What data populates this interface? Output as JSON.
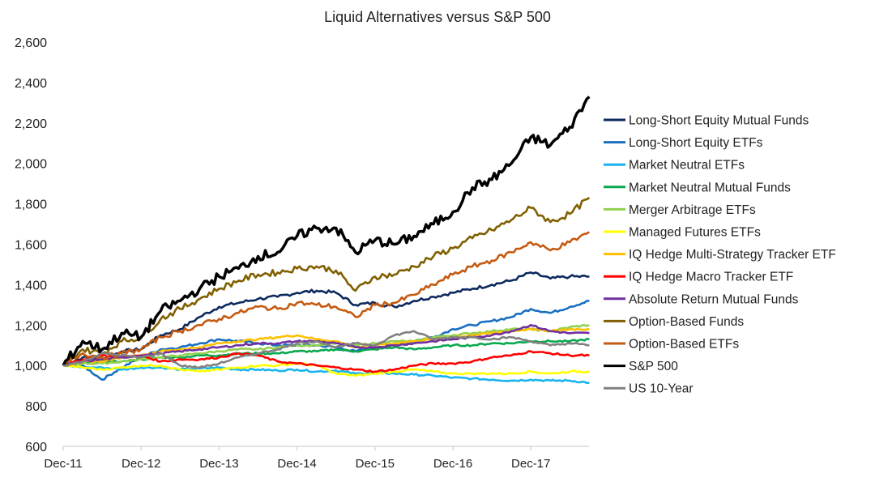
{
  "chart_data": {
    "type": "line",
    "title": "Liquid Alternatives versus S&P 500",
    "xlabel": "",
    "ylabel": "",
    "ylim": [
      600,
      2600
    ],
    "yticks": [
      "600",
      "800",
      "1,000",
      "1,200",
      "1,400",
      "1,600",
      "1,800",
      "2,000",
      "2,200",
      "2,400",
      "2,600"
    ],
    "ytick_values": [
      600,
      800,
      1000,
      1200,
      1400,
      1600,
      1800,
      2000,
      2200,
      2400,
      2600
    ],
    "xticks": [
      "Dec-11",
      "Dec-12",
      "Dec-13",
      "Dec-14",
      "Dec-15",
      "Dec-16",
      "Dec-17"
    ],
    "xtick_dates": [
      "2011-12",
      "2012-12",
      "2013-12",
      "2014-12",
      "2015-12",
      "2016-12",
      "2017-12"
    ],
    "grid": false,
    "legend_position": "right",
    "x": [
      "2011-12",
      "2012-03",
      "2012-06",
      "2012-09",
      "2012-12",
      "2013-03",
      "2013-06",
      "2013-09",
      "2013-12",
      "2014-03",
      "2014-06",
      "2014-09",
      "2014-12",
      "2015-03",
      "2015-06",
      "2015-09",
      "2015-12",
      "2016-03",
      "2016-06",
      "2016-09",
      "2016-12",
      "2017-03",
      "2017-06",
      "2017-09",
      "2017-12",
      "2018-03",
      "2018-06",
      "2018-09"
    ],
    "series": [
      {
        "name": "Long-Short Equity Mutual Funds",
        "color": "#0d2a5e",
        "values": [
          1000,
          1040,
          1030,
          1070,
          1080,
          1150,
          1180,
          1240,
          1290,
          1310,
          1330,
          1340,
          1360,
          1370,
          1360,
          1300,
          1310,
          1290,
          1320,
          1340,
          1360,
          1380,
          1400,
          1420,
          1460,
          1430,
          1440,
          1440
        ]
      },
      {
        "name": "Long-Short Equity ETFs",
        "color": "#1b6fc0",
        "values": [
          1000,
          1000,
          930,
          990,
          1040,
          1080,
          1090,
          1110,
          1130,
          1120,
          1110,
          1100,
          1100,
          1100,
          1090,
          1070,
          1090,
          1100,
          1120,
          1140,
          1180,
          1200,
          1220,
          1240,
          1280,
          1260,
          1290,
          1320
        ]
      },
      {
        "name": "Market Neutral ETFs",
        "color": "#19b4ef",
        "values": [
          1000,
          990,
          990,
          980,
          990,
          990,
          980,
          985,
          990,
          980,
          980,
          975,
          980,
          970,
          975,
          960,
          965,
          960,
          955,
          950,
          940,
          935,
          930,
          925,
          930,
          925,
          925,
          915
        ]
      },
      {
        "name": "Market Neutral Mutual Funds",
        "color": "#0aa84f",
        "values": [
          1000,
          1010,
          1020,
          1020,
          1030,
          1040,
          1040,
          1050,
          1050,
          1060,
          1060,
          1060,
          1070,
          1070,
          1080,
          1070,
          1080,
          1090,
          1080,
          1090,
          1100,
          1100,
          1110,
          1110,
          1120,
          1120,
          1120,
          1130
        ]
      },
      {
        "name": "Merger Arbitrage ETFs",
        "color": "#92d050",
        "values": [
          1000,
          1010,
          1010,
          1020,
          1030,
          1040,
          1050,
          1060,
          1070,
          1080,
          1080,
          1090,
          1100,
          1100,
          1110,
          1100,
          1110,
          1120,
          1120,
          1140,
          1150,
          1160,
          1170,
          1180,
          1180,
          1170,
          1190,
          1200
        ]
      },
      {
        "name": "Managed Futures ETFs",
        "color": "#ffff00",
        "values": [
          1000,
          990,
          980,
          990,
          1000,
          1000,
          980,
          970,
          980,
          990,
          1000,
          1000,
          1010,
          1000,
          960,
          950,
          960,
          970,
          980,
          970,
          960,
          960,
          960,
          960,
          970,
          960,
          970,
          970
        ]
      },
      {
        "name": "IQ Hedge Multi-Strategy Tracker ETF",
        "color": "#ffc000",
        "values": [
          1000,
          1020,
          1020,
          1040,
          1050,
          1070,
          1080,
          1090,
          1110,
          1120,
          1130,
          1140,
          1150,
          1130,
          1120,
          1090,
          1100,
          1110,
          1120,
          1130,
          1140,
          1150,
          1160,
          1170,
          1180,
          1170,
          1180,
          1180
        ]
      },
      {
        "name": "IQ Hedge Macro Tracker ETF",
        "color": "#ff0000",
        "values": [
          1000,
          1030,
          1050,
          1040,
          1050,
          1020,
          1030,
          1030,
          1040,
          1060,
          1050,
          1020,
          1010,
          1000,
          990,
          980,
          970,
          980,
          1000,
          1010,
          1010,
          1020,
          1040,
          1050,
          1070,
          1060,
          1050,
          1050
        ]
      },
      {
        "name": "Absolute Return Mutual Funds",
        "color": "#7030a0",
        "values": [
          1000,
          1020,
          1030,
          1040,
          1050,
          1060,
          1070,
          1080,
          1090,
          1100,
          1110,
          1110,
          1120,
          1120,
          1110,
          1090,
          1090,
          1100,
          1110,
          1120,
          1130,
          1140,
          1150,
          1170,
          1200,
          1170,
          1160,
          1160
        ]
      },
      {
        "name": "Option-Based Funds",
        "color": "#806000",
        "values": [
          1000,
          1080,
          1060,
          1120,
          1140,
          1230,
          1280,
          1330,
          1380,
          1420,
          1450,
          1460,
          1480,
          1490,
          1470,
          1370,
          1440,
          1450,
          1490,
          1540,
          1580,
          1630,
          1670,
          1720,
          1780,
          1710,
          1750,
          1830
        ]
      },
      {
        "name": "Option-Based ETFs",
        "color": "#c55a11",
        "values": [
          1000,
          1060,
          1040,
          1060,
          1080,
          1140,
          1170,
          1200,
          1230,
          1260,
          1290,
          1280,
          1310,
          1300,
          1290,
          1240,
          1300,
          1310,
          1350,
          1400,
          1450,
          1490,
          1520,
          1560,
          1610,
          1570,
          1610,
          1660
        ]
      },
      {
        "name": "S&P 500",
        "color": "#000000",
        "values": [
          1000,
          1120,
          1080,
          1160,
          1140,
          1270,
          1320,
          1380,
          1440,
          1480,
          1540,
          1560,
          1640,
          1680,
          1680,
          1560,
          1620,
          1600,
          1640,
          1700,
          1760,
          1880,
          1920,
          2000,
          2130,
          2090,
          2180,
          2330
        ]
      },
      {
        "name": "US 10-Year",
        "color": "#808080",
        "values": [
          1000,
          1020,
          1060,
          1050,
          1040,
          1060,
          1000,
          990,
          1010,
          1040,
          1060,
          1080,
          1110,
          1120,
          1090,
          1110,
          1100,
          1150,
          1170,
          1130,
          1140,
          1140,
          1130,
          1140,
          1120,
          1100,
          1110,
          1100
        ]
      }
    ]
  }
}
